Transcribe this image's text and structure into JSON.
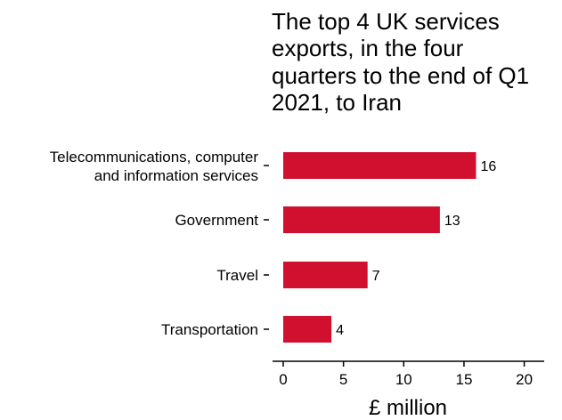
{
  "chart_data": {
    "type": "bar",
    "orientation": "horizontal",
    "title_lines": [
      "The top 4 UK services",
      "exports, in the four",
      "quarters to the end of Q1",
      "2021, to Iran"
    ],
    "categories": [
      [
        "Telecommunications, computer",
        "and information services"
      ],
      [
        "Government"
      ],
      [
        "Travel"
      ],
      [
        "Transportation"
      ]
    ],
    "values": [
      16,
      13,
      7,
      4
    ],
    "value_labels": [
      "16",
      "13",
      "7",
      "4"
    ],
    "xlabel": "£ million",
    "xlim": [
      0,
      21
    ],
    "xticks": [
      0,
      5,
      10,
      15,
      20
    ],
    "grid": false,
    "bar_color": "#d0102e"
  }
}
